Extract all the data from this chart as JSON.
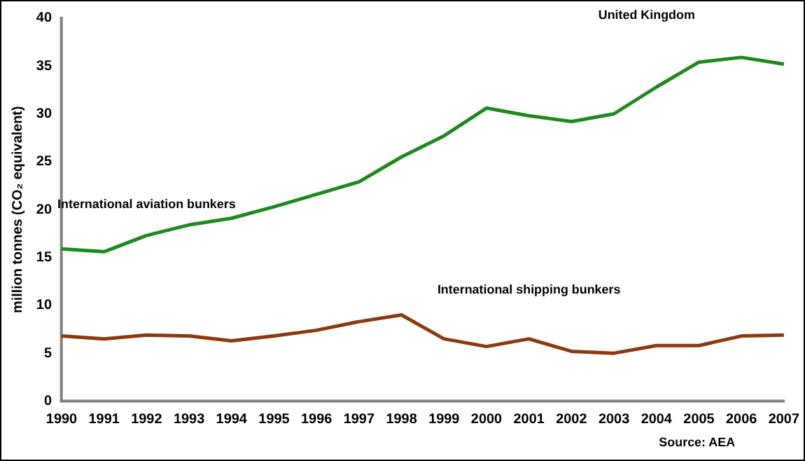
{
  "chart_data": {
    "type": "line",
    "title": "United Kingdom",
    "ylabel": "million tonnes (CO₂ equivalent)",
    "categories": [
      "1990",
      "1991",
      "1992",
      "1993",
      "1994",
      "1995",
      "1996",
      "1997",
      "1998",
      "1999",
      "2000",
      "2001",
      "2002",
      "2003",
      "2004",
      "2005",
      "2006",
      "2007"
    ],
    "series": [
      {
        "name": "International aviation bunkers",
        "color": "#1e8a1e",
        "values": [
          15.9,
          15.6,
          17.3,
          18.4,
          19.1,
          20.3,
          21.6,
          22.9,
          25.5,
          27.7,
          30.6,
          29.8,
          29.2,
          30.0,
          32.8,
          35.4,
          35.9,
          35.2
        ]
      },
      {
        "name": "International shipping bunkers",
        "color": "#8b3a0f",
        "values": [
          6.8,
          6.5,
          6.9,
          6.8,
          6.3,
          6.8,
          7.4,
          8.3,
          9.0,
          6.5,
          5.7,
          6.5,
          5.2,
          5.0,
          5.8,
          5.8,
          6.8,
          6.9
        ]
      }
    ],
    "ylim": [
      0,
      40
    ],
    "yticks": [
      0,
      5,
      10,
      15,
      20,
      25,
      30,
      35,
      40
    ],
    "annotations": [
      "Source: AEA"
    ],
    "grid": false,
    "legend": false,
    "marker": "none",
    "line_style": "solid"
  }
}
